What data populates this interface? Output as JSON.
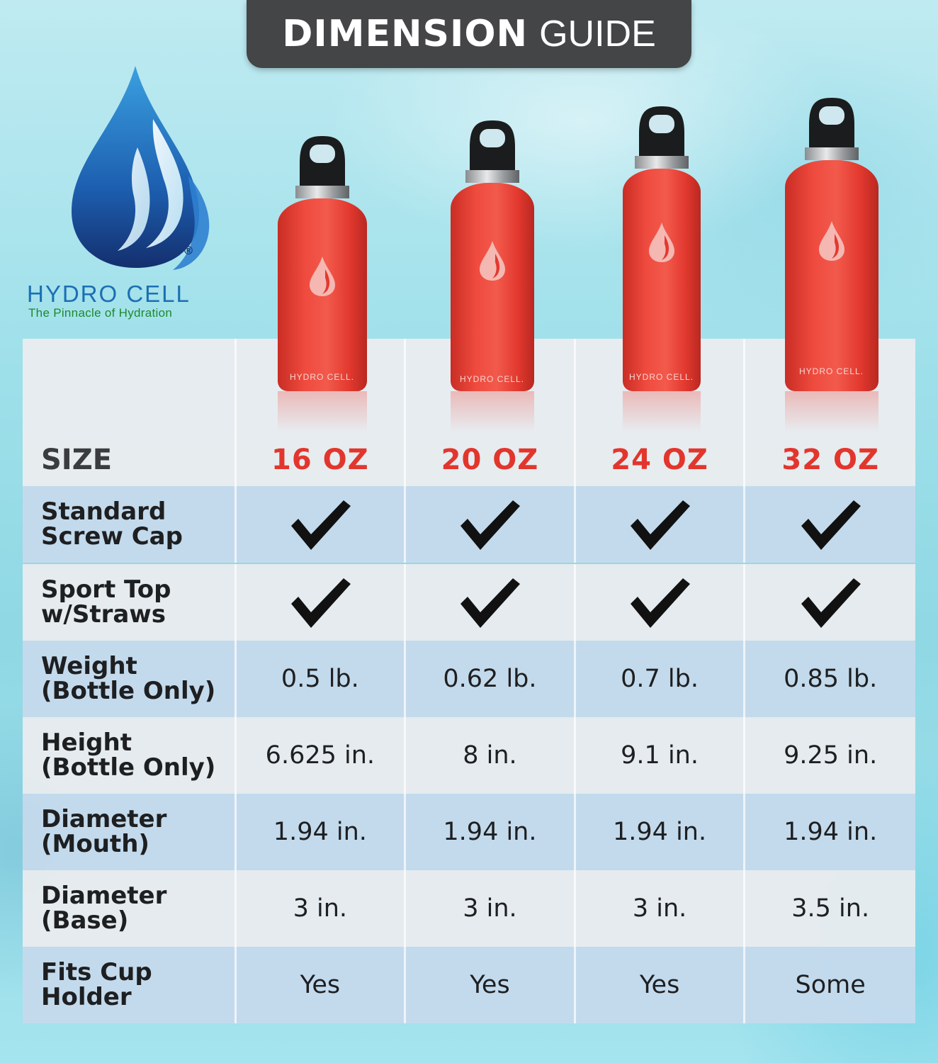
{
  "header": {
    "title_bold": "DIMENSION",
    "title_light": "GUIDE"
  },
  "brand": {
    "name": "HYDRO CELL",
    "registered": "®",
    "tagline": "The Pinnacle of Hydration",
    "bottle_label": "HYDRO CELL."
  },
  "colors": {
    "banner": "#434547",
    "size_red": "#e2362d",
    "brand_blue": "#1c6fb4",
    "brand_green": "#1c8a2c",
    "bottle_red": "#ef4a3e"
  },
  "table": {
    "size_label": "SIZE",
    "sizes": [
      "16 OZ",
      "20 OZ",
      "24 OZ",
      "32 OZ"
    ],
    "rows": [
      {
        "label_line1": "Standard",
        "label_line2": "Screw Cap",
        "type": "check",
        "values": [
          true,
          true,
          true,
          true
        ]
      },
      {
        "label_line1": "Sport Top",
        "label_line2": "w/Straws",
        "type": "check",
        "values": [
          true,
          true,
          true,
          true
        ]
      },
      {
        "label_line1": "Weight",
        "label_line2": "(Bottle Only)",
        "type": "text",
        "values": [
          "0.5 lb.",
          "0.62 lb.",
          "0.7 lb.",
          "0.85 lb."
        ]
      },
      {
        "label_line1": "Height",
        "label_line2": "(Bottle Only)",
        "type": "text",
        "values": [
          "6.625 in.",
          "8 in.",
          "9.1 in.",
          "9.25 in."
        ]
      },
      {
        "label_line1": "Diameter",
        "label_line2": "(Mouth)",
        "type": "text",
        "values": [
          "1.94 in.",
          "1.94 in.",
          "1.94 in.",
          "1.94 in."
        ]
      },
      {
        "label_line1": "Diameter",
        "label_line2": "(Base)",
        "type": "text",
        "values": [
          "3 in.",
          "3 in.",
          "3 in.",
          "3.5 in."
        ]
      },
      {
        "label_line1": "Fits Cup",
        "label_line2": "Holder",
        "type": "text",
        "values": [
          "Yes",
          "Yes",
          "Yes",
          "Some"
        ]
      }
    ]
  },
  "icons": {
    "check": "checkmark-icon",
    "logo": "water-drop-logo-icon"
  }
}
